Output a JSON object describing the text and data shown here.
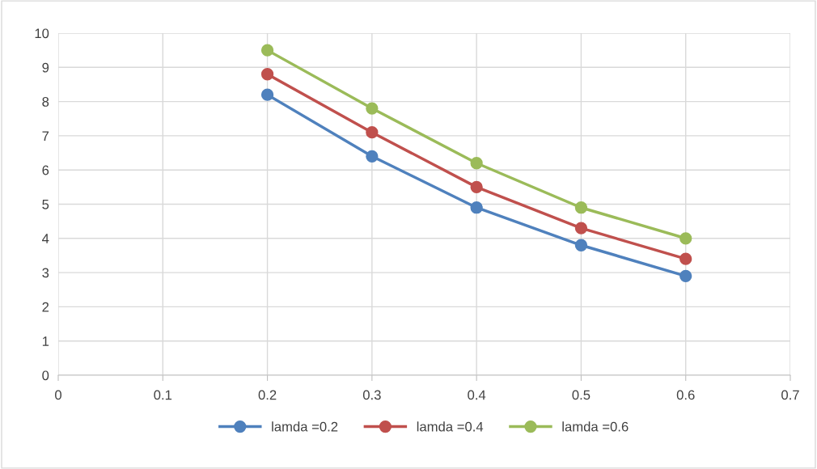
{
  "chart_data": {
    "type": "line",
    "x": [
      0.2,
      0.3,
      0.4,
      0.5,
      0.6
    ],
    "series": [
      {
        "name": "lamda =0.2",
        "color": "#4f81bd",
        "values": [
          8.2,
          6.4,
          4.9,
          3.8,
          2.9
        ]
      },
      {
        "name": "lamda =0.4",
        "color": "#c0504d",
        "values": [
          8.8,
          7.1,
          5.5,
          4.3,
          3.4
        ]
      },
      {
        "name": "lamda =0.6",
        "color": "#9bbb59",
        "values": [
          9.5,
          7.8,
          6.2,
          4.9,
          4.0
        ]
      }
    ],
    "xlim": [
      0,
      0.7
    ],
    "xticks": [
      0,
      0.1,
      0.2,
      0.3,
      0.4,
      0.5,
      0.6,
      0.7
    ],
    "ylim": [
      0,
      10
    ],
    "yticks": [
      0,
      1,
      2,
      3,
      4,
      5,
      6,
      7,
      8,
      9,
      10
    ],
    "grid": true,
    "legend": "bottom",
    "marker": "circle",
    "line_style": "solid"
  }
}
